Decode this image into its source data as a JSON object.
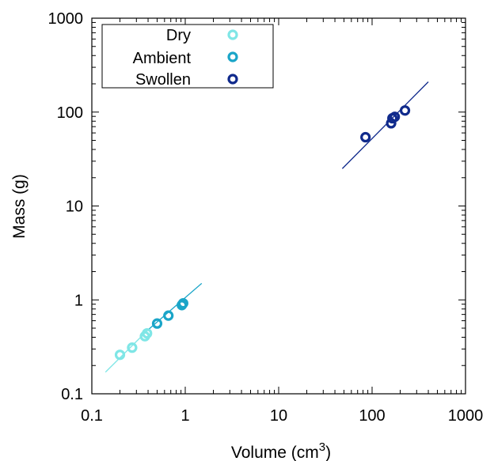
{
  "chart_data": {
    "type": "scatter",
    "xscale": "log",
    "yscale": "log",
    "xlim": [
      0.1,
      1000
    ],
    "ylim": [
      0.1,
      1000
    ],
    "xlabel": "Volume (cm",
    "xlabel_sup": "3",
    "xlabel_end": ")",
    "ylabel": "Mass (g)",
    "x_ticks": [
      {
        "value": 0.1,
        "label": "0.1"
      },
      {
        "value": 1,
        "label": "1"
      },
      {
        "value": 10,
        "label": "10"
      },
      {
        "value": 100,
        "label": "100"
      },
      {
        "value": 1000,
        "label": "1000"
      }
    ],
    "y_ticks": [
      {
        "value": 0.1,
        "label": "0.1"
      },
      {
        "value": 1,
        "label": "1"
      },
      {
        "value": 10,
        "label": "10"
      },
      {
        "value": 100,
        "label": "100"
      },
      {
        "value": 1000,
        "label": "1000"
      }
    ],
    "legend_position": "top-left",
    "series": [
      {
        "name": "Dry",
        "color": "#7fe6e6",
        "points": [
          {
            "x": 0.2,
            "y": 0.26
          },
          {
            "x": 0.27,
            "y": 0.31
          },
          {
            "x": 0.37,
            "y": 0.41
          },
          {
            "x": 0.39,
            "y": 0.44
          }
        ],
        "fit_line": {
          "x": [
            0.14,
            0.4
          ],
          "y": [
            0.17,
            0.48
          ]
        }
      },
      {
        "name": "Ambient",
        "color": "#1aa5c8",
        "points": [
          {
            "x": 0.5,
            "y": 0.56
          },
          {
            "x": 0.66,
            "y": 0.68
          },
          {
            "x": 0.92,
            "y": 0.88
          },
          {
            "x": 0.95,
            "y": 0.92
          }
        ],
        "fit_line": {
          "x": [
            0.4,
            1.5
          ],
          "y": [
            0.48,
            1.5
          ]
        }
      },
      {
        "name": "Swollen",
        "color": "#102a8c",
        "points": [
          {
            "x": 85,
            "y": 54
          },
          {
            "x": 160,
            "y": 76
          },
          {
            "x": 165,
            "y": 86
          },
          {
            "x": 175,
            "y": 89
          },
          {
            "x": 225,
            "y": 104
          }
        ],
        "fit_line": {
          "x": [
            48,
            400
          ],
          "y": [
            25,
            210
          ]
        }
      }
    ]
  }
}
